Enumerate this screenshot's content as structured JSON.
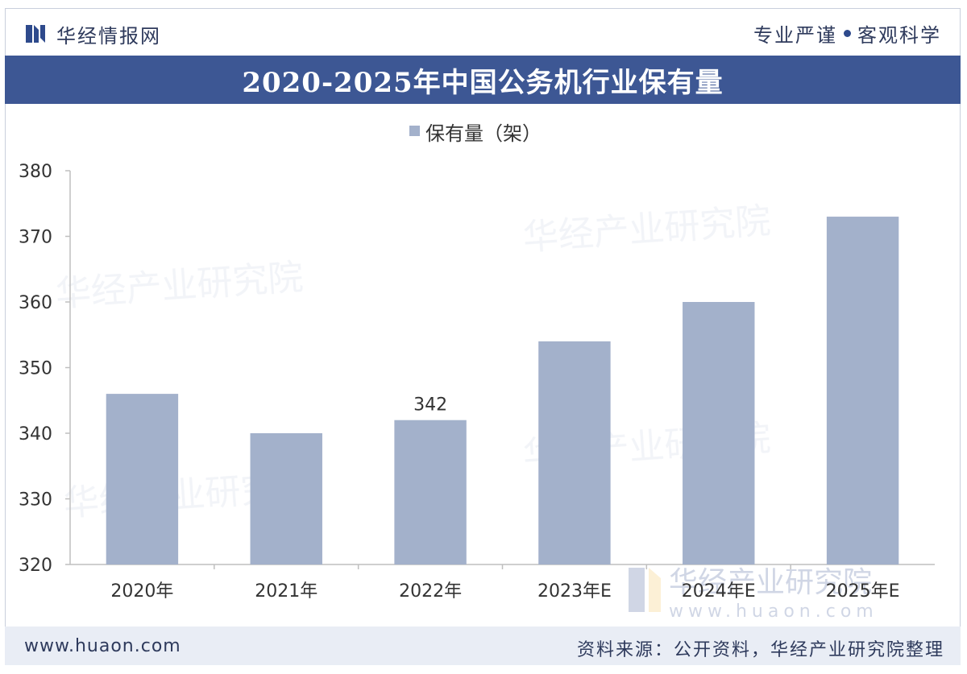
{
  "header": {
    "brand_name": "华经情报网",
    "slogan_left": "专业严谨",
    "slogan_right": "客观科学"
  },
  "title": "2020-2025年中国公务机行业保有量",
  "watermark": {
    "name": "华经产业研究院",
    "url": "www.huaon.com"
  },
  "footer": {
    "url": "www.huaon.com",
    "source": "资料来源：公开资料，华经产业研究院整理"
  },
  "colors": {
    "bar": "#a3b1cb",
    "title_bar": "#3d5794",
    "footer_bg": "#e9edf5",
    "text_dark": "#2e3a5c"
  },
  "chart_data": {
    "type": "bar",
    "categories": [
      "2020年",
      "2021年",
      "2022年",
      "2023年E",
      "2024年E",
      "2025年E"
    ],
    "series": [
      {
        "name": "保有量（架）",
        "values": [
          346,
          340,
          342,
          354,
          360,
          373
        ]
      }
    ],
    "data_labels": [
      {
        "category": "2022年",
        "label": "342"
      }
    ],
    "ylim": [
      320,
      380
    ],
    "yticks": [
      320,
      330,
      340,
      350,
      360,
      370,
      380
    ],
    "legend_position": "top-center",
    "grid": false
  }
}
